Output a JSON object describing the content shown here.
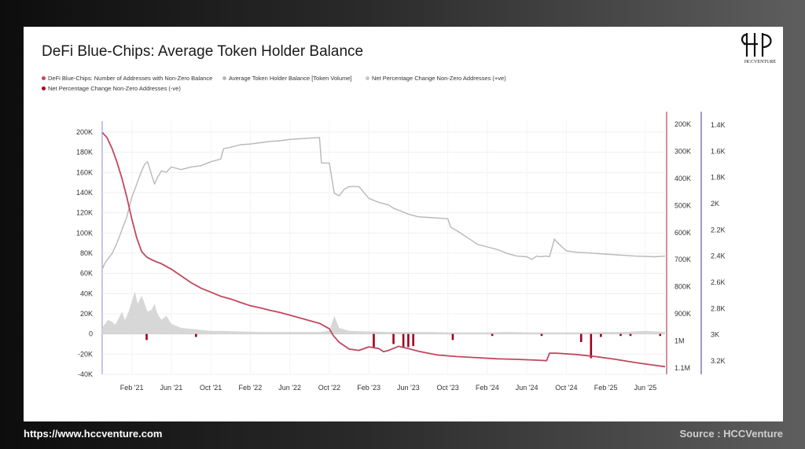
{
  "title": "DeFi Blue-Chips: Average Token Holder Balance",
  "logo": {
    "monogram": "HCC",
    "text": "HCCVENTURE"
  },
  "footer": {
    "url": "https://www.hccventure.com",
    "source": "Source : HCCVenture"
  },
  "colors": {
    "addresses": "#c0485e",
    "avg_balance": "#b8b8b8",
    "pos_change": "#d3d3d3",
    "neg_change": "#a0001e"
  },
  "chart_data": {
    "type": "line",
    "legend": [
      {
        "label": "DeFi Blue-Chips: Number of Addresses with Non-Zero Balance",
        "color": "#c0485e"
      },
      {
        "label": "Average Token Holder Balance [Token Volume]",
        "color": "#b8b8b8"
      },
      {
        "label": "Net Percentage Change Non-Zero Addresses (+ve)",
        "color": "#c8c8c8"
      },
      {
        "label": "Net Percentage Change Non-Zero Addresses (-ve)",
        "color": "#a0001e"
      }
    ],
    "x_ticks": [
      "Feb '21",
      "Jun '21",
      "Oct '21",
      "Feb '22",
      "Jun '22",
      "Oct '22",
      "Feb '23",
      "Jun '23",
      "Oct '23",
      "Feb '24",
      "Jun '24",
      "Oct '24",
      "Feb '25",
      "Jun '25"
    ],
    "x_range": [
      "Nov '20",
      "Aug '25"
    ],
    "left_axis": {
      "ticks": [
        "200K",
        "180K",
        "160K",
        "140K",
        "120K",
        "100K",
        "80K",
        "60K",
        "40K",
        "20K",
        "0",
        "-20K",
        "-40K"
      ],
      "range": [
        -40000,
        200000
      ]
    },
    "mid_axis": {
      "ticks": [
        "1.1M",
        "1M",
        "900K",
        "800K",
        "700K",
        "600K",
        "500K",
        "400K",
        "300K",
        "200K"
      ],
      "range": [
        200000,
        1100000
      ]
    },
    "right_axis": {
      "ticks": [
        "3.2K",
        "3K",
        "2.8K",
        "2.6K",
        "2.4K",
        "2.2K",
        "2K",
        "1.8K",
        "1.6K",
        "1.4K"
      ],
      "range": [
        1400,
        3200
      ]
    },
    "series": [
      {
        "name": "DeFi Blue-Chips: Number of Addresses with Non-Zero Balance",
        "axis": "mid",
        "x_months": [
          0,
          0.5,
          1,
          1.5,
          2,
          2.5,
          3,
          3.5,
          4,
          4.5,
          5,
          5.5,
          6,
          7,
          8,
          9,
          10,
          11,
          12,
          13,
          14,
          15,
          16,
          17,
          18,
          19,
          20,
          21,
          22,
          23,
          23.4,
          24,
          25,
          26,
          27,
          28,
          28.5,
          29,
          30,
          31,
          32,
          33,
          34,
          36,
          38,
          40,
          42,
          44,
          45,
          45.3,
          46,
          48,
          50,
          52,
          54,
          56,
          57
        ],
        "values": [
          230000,
          250000,
          290000,
          340000,
          400000,
          470000,
          550000,
          620000,
          670000,
          690000,
          700000,
          708000,
          715000,
          735000,
          760000,
          785000,
          805000,
          820000,
          835000,
          845000,
          858000,
          870000,
          878000,
          887000,
          895000,
          905000,
          915000,
          925000,
          935000,
          955000,
          980000,
          1005000,
          1030000,
          1035000,
          1022000,
          1028000,
          1040000,
          1035000,
          1020000,
          1028000,
          1038000,
          1045000,
          1052000,
          1058000,
          1062000,
          1066000,
          1068000,
          1071000,
          1073000,
          1045000,
          1045000,
          1050000,
          1058000,
          1068000,
          1080000,
          1090000,
          1095000
        ]
      },
      {
        "name": "Average Token Holder Balance [Token Volume]",
        "axis": "right",
        "x_months": [
          0,
          0.3,
          0.6,
          1,
          1.5,
          2,
          2.5,
          3,
          3.5,
          4,
          4.3,
          4.6,
          5,
          5.3,
          5.6,
          6,
          6.5,
          7,
          7.5,
          8,
          9,
          10,
          11,
          12,
          12.3,
          13,
          14,
          15,
          16,
          17,
          18,
          19,
          20,
          21,
          22,
          22.2,
          23,
          23.5,
          24,
          24.5,
          25,
          26,
          27,
          28,
          29,
          29.5,
          30,
          31,
          32,
          33,
          34,
          35,
          35.3,
          36,
          37,
          38,
          39,
          40,
          41,
          42,
          43,
          43.5,
          44,
          44.3,
          45,
          45.3,
          45.8,
          46,
          47,
          48,
          50,
          52,
          54,
          56,
          57
        ],
        "values": [
          2500,
          2450,
          2420,
          2380,
          2300,
          2200,
          2100,
          1950,
          1850,
          1750,
          1700,
          1680,
          1780,
          1850,
          1800,
          1750,
          1760,
          1720,
          1730,
          1740,
          1720,
          1710,
          1680,
          1660,
          1580,
          1570,
          1550,
          1545,
          1535,
          1525,
          1520,
          1510,
          1505,
          1500,
          1495,
          1690,
          1690,
          1920,
          1940,
          1890,
          1870,
          1870,
          1960,
          1990,
          2010,
          2035,
          2050,
          2080,
          2100,
          2105,
          2110,
          2115,
          2180,
          2210,
          2260,
          2310,
          2330,
          2350,
          2380,
          2400,
          2405,
          2425,
          2400,
          2405,
          2400,
          2405,
          2270,
          2290,
          2360,
          2370,
          2380,
          2390,
          2400,
          2405,
          2400
        ]
      },
      {
        "name": "Net Percentage Change Non-Zero Addresses (+ve)",
        "axis": "left",
        "x_months": [
          0,
          0.3,
          0.6,
          1,
          1.3,
          1.6,
          2,
          2.3,
          2.6,
          3,
          3.3,
          3.6,
          4,
          4.3,
          4.6,
          5,
          5.3,
          5.6,
          6,
          6.5,
          7,
          7.5,
          8,
          9,
          10,
          11,
          12,
          14,
          16,
          18,
          20,
          22,
          23,
          23.5,
          24,
          25,
          27,
          29,
          31,
          33,
          35,
          37,
          39,
          41,
          43,
          45,
          47,
          49,
          51,
          53,
          55,
          57
        ],
        "values": [
          6000,
          10000,
          14000,
          12000,
          9000,
          14000,
          22000,
          14000,
          20000,
          32000,
          42000,
          30000,
          38000,
          30000,
          22000,
          24000,
          30000,
          20000,
          14000,
          18000,
          10000,
          8000,
          6000,
          5000,
          4000,
          3000,
          3000,
          2500,
          2000,
          2000,
          2000,
          2000,
          3000,
          18000,
          6000,
          3000,
          2500,
          2000,
          2000,
          2000,
          1500,
          1500,
          1500,
          2000,
          1500,
          1500,
          1500,
          1500,
          2000,
          2000,
          3000,
          2000
        ]
      },
      {
        "name": "Net Percentage Change Non-Zero Addresses (-ve)",
        "axis": "left",
        "x_months": [
          4.5,
          9.5,
          27.5,
          29.5,
          30.5,
          31,
          31.5,
          35.5,
          39.5,
          44.5,
          48.5,
          49.5,
          50.5,
          52.5,
          53.5,
          56.5
        ],
        "values": [
          -6000,
          -3000,
          -14000,
          -10000,
          -14000,
          -13000,
          -12000,
          -6000,
          -2000,
          -2000,
          -8000,
          -24000,
          -3000,
          -2000,
          -2000,
          -2000
        ]
      }
    ]
  }
}
